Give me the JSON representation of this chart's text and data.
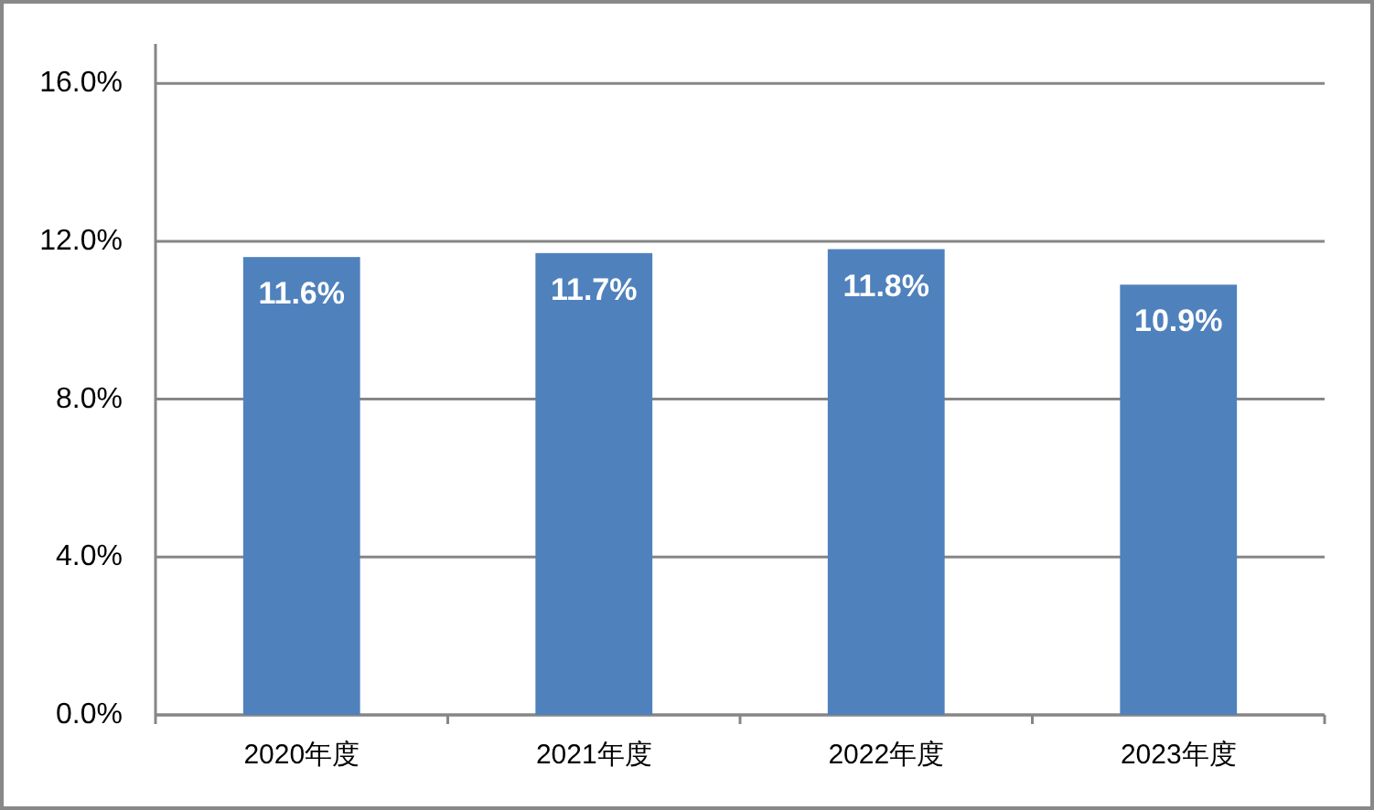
{
  "chart_data": {
    "type": "bar",
    "categories": [
      "2020年度",
      "2021年度",
      "2022年度",
      "2023年度"
    ],
    "values": [
      11.6,
      11.7,
      11.8,
      10.9
    ],
    "value_labels": [
      "11.6%",
      "11.7%",
      "11.8%",
      "10.9%"
    ],
    "color": "#4f81bd",
    "ylim": [
      0,
      17
    ],
    "yticks": [
      {
        "value": 0,
        "label": "0.0%"
      },
      {
        "value": 4,
        "label": "4.0%"
      },
      {
        "value": 8,
        "label": "8.0%"
      },
      {
        "value": 12,
        "label": "12.0%"
      },
      {
        "value": 16,
        "label": "16.0%"
      }
    ],
    "grid": "y"
  }
}
